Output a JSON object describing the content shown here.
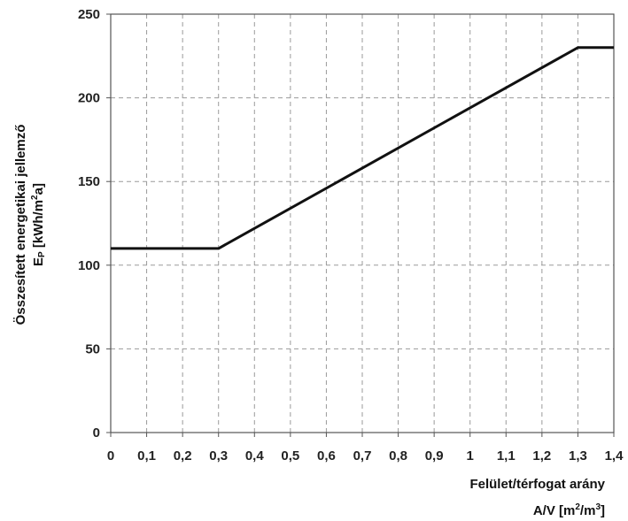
{
  "chart_data": {
    "type": "line",
    "x": [
      0,
      0.3,
      1.3,
      1.4
    ],
    "series": [
      {
        "values": [
          110,
          110,
          230,
          230
        ]
      }
    ],
    "xlim": [
      0,
      1.4
    ],
    "ylim": [
      0,
      250
    ],
    "x_ticks": [
      0,
      0.1,
      0.2,
      0.3,
      0.4,
      0.5,
      0.6,
      0.7,
      0.8,
      0.9,
      1.0,
      1.1,
      1.2,
      1.3,
      1.4
    ],
    "x_tick_labels": [
      "0",
      "0,1",
      "0,2",
      "0,3",
      "0,4",
      "0,5",
      "0,6",
      "0,7",
      "0,8",
      "0,9",
      "1",
      "1,1",
      "1,2",
      "1,3",
      "1,4"
    ],
    "y_ticks": [
      0,
      50,
      100,
      150,
      200,
      250
    ],
    "y_tick_labels": [
      "0",
      "50",
      "100",
      "150",
      "200",
      "250"
    ],
    "grid": true,
    "ylabel_line1": "Összesített energetikai jellemző",
    "ylabel_line2_prefix": "E",
    "ylabel_line2_sub": "P",
    "ylabel_line2_mid": " [kWh/m",
    "ylabel_line2_sup": "2",
    "ylabel_line2_suffix": "a]",
    "xlabel_line1": "Felület/térfogat arány",
    "xlabel_line2_prefix": "A/V [m",
    "xlabel_line2_sup1": "2",
    "xlabel_line2_mid": "/m",
    "xlabel_line2_sup2": "3",
    "xlabel_line2_suffix": "]",
    "colors": {
      "line": "#111111",
      "grid": "#9a9a9a",
      "frame": "#555555"
    }
  }
}
